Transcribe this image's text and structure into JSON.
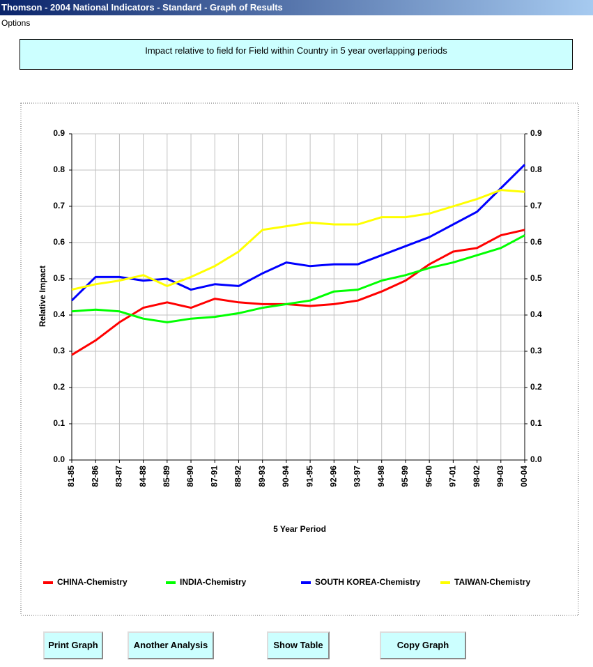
{
  "window": {
    "title": "Thomson - 2004 National Indicators - Standard - Graph of Results"
  },
  "menu": [
    "Options"
  ],
  "header": {
    "text": "Impact relative to field for Field within Country in 5 year overlapping periods"
  },
  "chart_data": {
    "type": "line",
    "xlabel": "5 Year Period",
    "ylabel": "Relative Impact",
    "categories": [
      "81-85",
      "82-86",
      "83-87",
      "84-88",
      "85-89",
      "86-90",
      "87-91",
      "88-92",
      "89-93",
      "90-94",
      "91-95",
      "92-96",
      "93-97",
      "94-98",
      "95-99",
      "96-00",
      "97-01",
      "98-02",
      "99-03",
      "00-04"
    ],
    "series": [
      {
        "name": "CHINA-Chemistry",
        "color": "#ff0000",
        "values": [
          0.29,
          0.33,
          0.38,
          0.42,
          0.435,
          0.42,
          0.445,
          0.435,
          0.43,
          0.43,
          0.425,
          0.43,
          0.44,
          0.465,
          0.495,
          0.54,
          0.575,
          0.585,
          0.62,
          0.635
        ]
      },
      {
        "name": "INDIA-Chemistry",
        "color": "#00ff00",
        "values": [
          0.41,
          0.415,
          0.41,
          0.39,
          0.38,
          0.39,
          0.395,
          0.405,
          0.42,
          0.43,
          0.44,
          0.465,
          0.47,
          0.495,
          0.51,
          0.53,
          0.545,
          0.565,
          0.585,
          0.62
        ]
      },
      {
        "name": "SOUTH KOREA-Chemistry",
        "color": "#0000ff",
        "values": [
          0.44,
          0.505,
          0.505,
          0.495,
          0.5,
          0.47,
          0.485,
          0.48,
          0.515,
          0.545,
          0.535,
          0.54,
          0.54,
          0.565,
          0.59,
          0.615,
          0.65,
          0.685,
          0.75,
          0.815
        ]
      },
      {
        "name": "TAIWAN-Chemistry",
        "color": "#ffff00",
        "values": [
          0.47,
          0.485,
          0.495,
          0.51,
          0.48,
          0.505,
          0.535,
          0.575,
          0.635,
          0.645,
          0.655,
          0.65,
          0.65,
          0.67,
          0.67,
          0.68,
          0.7,
          0.72,
          0.745,
          0.74
        ]
      }
    ],
    "ylim": [
      0,
      0.9
    ],
    "yticks": [
      {
        "value": 0,
        "label": "0.0"
      },
      0.1,
      0.2,
      0.3,
      0.4,
      0.5,
      0.6,
      0.7,
      0.8,
      0.9
    ],
    "y2lim": [
      0,
      0.9
    ],
    "y2ticks": [
      {
        "value": 0,
        "label": "0.0"
      },
      0.1,
      0.2,
      0.3,
      0.4,
      0.5,
      0.6,
      0.7,
      0.8,
      0.9
    ],
    "grid": true,
    "legend": "bottom"
  },
  "buttons": [
    "Print Graph",
    "Another Analysis",
    "Show Table",
    "Copy Graph"
  ]
}
